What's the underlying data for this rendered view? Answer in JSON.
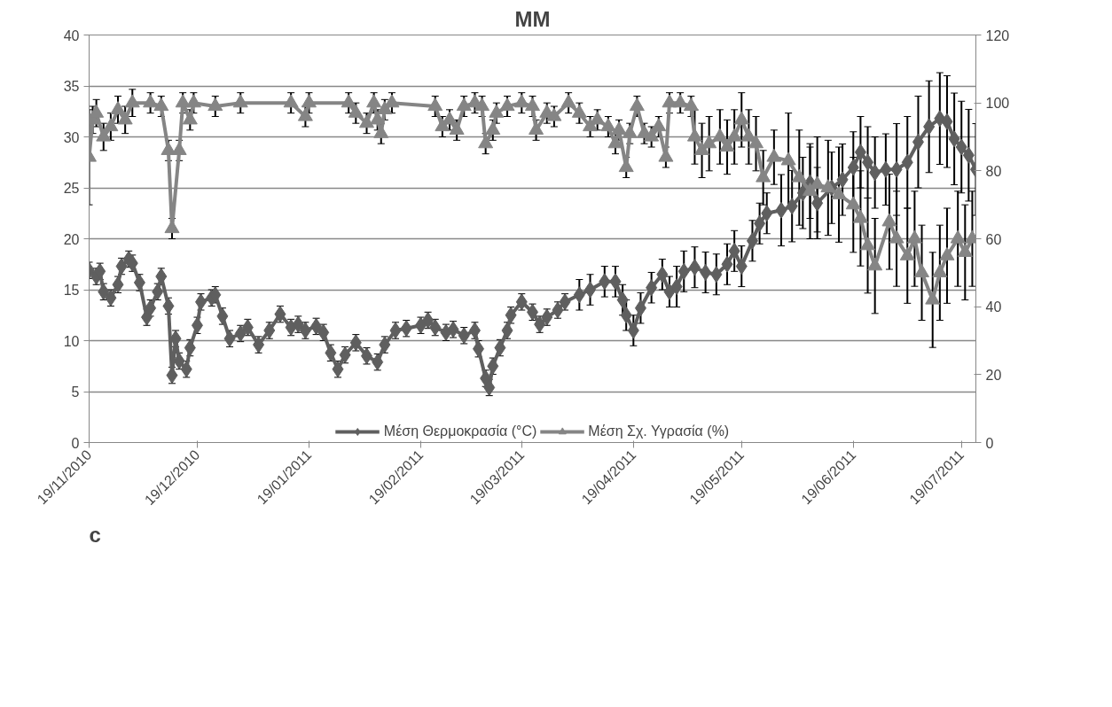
{
  "chart_data": {
    "type": "line",
    "title": "MM",
    "annotations": [
      "c"
    ],
    "xlim": [
      "2010-11-19",
      "2011-07-23"
    ],
    "xticks": [
      {
        "value": "2010-11-19",
        "label": "19/11/2010"
      },
      {
        "value": "2010-12-19",
        "label": "19/12/2010"
      },
      {
        "value": "2011-01-19",
        "label": "19/01/2011"
      },
      {
        "value": "2011-02-19",
        "label": "19/02/2011"
      },
      {
        "value": "2011-03-19",
        "label": "19/03/2011"
      },
      {
        "value": "2011-04-19",
        "label": "19/04/2011"
      },
      {
        "value": "2011-05-19",
        "label": "19/05/2011"
      },
      {
        "value": "2011-06-19",
        "label": "19/06/2011"
      },
      {
        "value": "2011-07-19",
        "label": "19/07/2011"
      }
    ],
    "ylim": [
      0,
      40
    ],
    "yticks": [
      0,
      5,
      10,
      15,
      20,
      25,
      30,
      35,
      40
    ],
    "y2lim": [
      0,
      120
    ],
    "y2ticks": [
      0,
      20,
      40,
      60,
      80,
      100,
      120
    ],
    "grid": "y",
    "legend": "bottom",
    "line_style": "solid",
    "series": [
      {
        "name": "Μέση Θερμοκρασία (°C)",
        "color": "#5f5f5f",
        "marker": "diamond",
        "x": [
          "2010-11-19",
          "2010-11-21",
          "2010-11-22",
          "2010-11-23",
          "2010-11-25",
          "2010-11-27",
          "2010-11-28",
          "2010-11-30",
          "2010-12-01",
          "2010-12-03",
          "2010-12-05",
          "2010-12-06",
          "2010-12-08",
          "2010-12-09",
          "2010-12-11",
          "2010-12-12",
          "2010-12-13",
          "2010-12-14",
          "2010-12-16",
          "2010-12-17",
          "2010-12-19",
          "2010-12-20",
          "2010-12-23",
          "2010-12-24",
          "2010-12-26",
          "2010-12-28",
          "2010-12-31",
          "2011-01-02",
          "2011-01-05",
          "2011-01-08",
          "2011-01-11",
          "2011-01-14",
          "2011-01-16",
          "2011-01-18",
          "2011-01-21",
          "2011-01-23",
          "2011-01-25",
          "2011-01-27",
          "2011-01-29",
          "2011-02-01",
          "2011-02-04",
          "2011-02-07",
          "2011-02-09",
          "2011-02-12",
          "2011-02-15",
          "2011-02-19",
          "2011-02-21",
          "2011-02-23",
          "2011-02-26",
          "2011-02-28",
          "2011-03-03",
          "2011-03-06",
          "2011-03-07",
          "2011-03-09",
          "2011-03-10",
          "2011-03-11",
          "2011-03-13",
          "2011-03-15",
          "2011-03-16",
          "2011-03-19",
          "2011-03-22",
          "2011-03-24",
          "2011-03-26",
          "2011-03-29",
          "2011-03-31",
          "2011-04-04",
          "2011-04-07",
          "2011-04-11",
          "2011-04-14",
          "2011-04-16",
          "2011-04-17",
          "2011-04-19",
          "2011-04-21",
          "2011-04-24",
          "2011-04-27",
          "2011-04-29",
          "2011-05-01",
          "2011-05-03",
          "2011-05-06",
          "2011-05-09",
          "2011-05-12",
          "2011-05-15",
          "2011-05-17",
          "2011-05-19",
          "2011-05-22",
          "2011-05-24",
          "2011-05-26",
          "2011-05-30",
          "2011-06-02",
          "2011-06-05",
          "2011-06-07",
          "2011-06-09",
          "2011-06-13",
          "2011-06-16",
          "2011-06-19",
          "2011-06-21",
          "2011-06-23",
          "2011-06-25",
          "2011-06-28",
          "2011-07-01",
          "2011-07-04",
          "2011-07-07",
          "2011-07-10",
          "2011-07-13",
          "2011-07-15",
          "2011-07-17",
          "2011-07-19",
          "2011-07-21",
          "2011-07-23"
        ],
        "values": [
          16.9,
          16.3,
          16.8,
          14.8,
          14.2,
          15.5,
          17.3,
          18.0,
          17.6,
          15.7,
          12.3,
          13.2,
          14.8,
          16.3,
          13.4,
          6.6,
          10.2,
          8.0,
          7.2,
          9.3,
          11.5,
          13.8,
          14.2,
          14.5,
          12.4,
          10.2,
          10.7,
          11.3,
          9.6,
          11.0,
          12.6,
          11.3,
          11.6,
          11.0,
          11.4,
          10.8,
          8.8,
          7.2,
          8.6,
          9.8,
          8.5,
          7.9,
          9.6,
          11.0,
          11.2,
          11.5,
          12.0,
          11.3,
          10.8,
          11.1,
          10.5,
          11.0,
          9.2,
          6.3,
          5.4,
          7.5,
          9.3,
          11.0,
          12.5,
          13.8,
          12.8,
          11.6,
          12.3,
          13.0,
          13.8,
          14.5,
          15.0,
          15.8,
          15.8,
          14.0,
          12.5,
          11.0,
          13.2,
          15.2,
          16.5,
          14.8,
          15.3,
          16.8,
          17.2,
          16.7,
          16.5,
          17.5,
          18.8,
          17.3,
          19.8,
          21.5,
          22.5,
          22.8,
          23.2,
          24.5,
          25.5,
          23.5,
          25.0,
          25.8,
          27.0,
          28.5,
          27.5,
          26.5,
          26.8,
          26.8,
          27.5,
          29.5,
          31.0,
          31.8,
          31.5,
          29.8,
          29.0,
          28.2,
          26.8
        ],
        "errors": [
          0.8,
          0.8,
          0.8,
          0.8,
          0.8,
          0.8,
          0.8,
          0.8,
          0.8,
          0.8,
          0.8,
          0.8,
          0.8,
          0.8,
          0.8,
          0.8,
          0.8,
          0.8,
          0.8,
          0.8,
          0.8,
          0.8,
          0.8,
          0.8,
          0.8,
          0.8,
          0.8,
          0.8,
          0.8,
          0.8,
          0.8,
          0.8,
          0.8,
          0.8,
          0.8,
          0.8,
          0.8,
          0.8,
          0.8,
          0.8,
          0.8,
          0.8,
          0.8,
          0.8,
          0.8,
          0.8,
          0.8,
          0.8,
          0.8,
          0.8,
          0.8,
          0.8,
          0.8,
          0.8,
          0.8,
          0.8,
          0.8,
          0.8,
          0.8,
          0.8,
          0.8,
          0.8,
          0.8,
          0.8,
          0.8,
          1.5,
          1.5,
          1.5,
          1.5,
          1.5,
          1.5,
          1.5,
          1.5,
          1.5,
          1.5,
          1.5,
          2,
          2,
          2,
          2,
          2,
          2,
          2,
          2,
          2,
          2,
          2,
          3.5,
          3.5,
          3.5,
          3.5,
          3.5,
          3.5,
          3.5,
          3.5,
          3.5,
          3.5,
          3.5,
          3.5,
          4.5,
          4.5,
          4.5,
          4.5,
          4.5,
          4.5,
          4.5,
          4.5,
          4.5,
          4.5
        ]
      },
      {
        "name": "Μέση Σχ. Υγρασία (%)",
        "color": "#858585",
        "marker": "triangle",
        "axis": "y2",
        "x": [
          "2010-11-19",
          "2010-11-20",
          "2010-11-21",
          "2010-11-23",
          "2010-11-25",
          "2010-11-27",
          "2010-11-29",
          "2010-12-01",
          "2010-12-06",
          "2010-12-09",
          "2010-12-11",
          "2010-12-12",
          "2010-12-14",
          "2010-12-15",
          "2010-12-17",
          "2010-12-18",
          "2010-12-24",
          "2010-12-31",
          "2011-01-14",
          "2011-01-18",
          "2011-01-19",
          "2011-01-30",
          "2011-02-01",
          "2011-02-04",
          "2011-02-06",
          "2011-02-07",
          "2011-02-08",
          "2011-02-09",
          "2011-02-11",
          "2011-02-23",
          "2011-02-25",
          "2011-02-27",
          "2011-03-01",
          "2011-03-03",
          "2011-03-06",
          "2011-03-08",
          "2011-03-09",
          "2011-03-11",
          "2011-03-12",
          "2011-03-15",
          "2011-03-19",
          "2011-03-22",
          "2011-03-23",
          "2011-03-26",
          "2011-03-28",
          "2011-04-01",
          "2011-04-04",
          "2011-04-07",
          "2011-04-09",
          "2011-04-12",
          "2011-04-14",
          "2011-04-15",
          "2011-04-17",
          "2011-04-18",
          "2011-04-20",
          "2011-04-22",
          "2011-04-24",
          "2011-04-26",
          "2011-04-28",
          "2011-04-29",
          "2011-05-02",
          "2011-05-05",
          "2011-05-06",
          "2011-05-08",
          "2011-05-10",
          "2011-05-13",
          "2011-05-15",
          "2011-05-17",
          "2011-05-19",
          "2011-05-21",
          "2011-05-23",
          "2011-05-25",
          "2011-05-28",
          "2011-06-01",
          "2011-06-04",
          "2011-06-07",
          "2011-06-09",
          "2011-06-12",
          "2011-06-15",
          "2011-06-19",
          "2011-06-21",
          "2011-06-23",
          "2011-06-25",
          "2011-06-29",
          "2011-07-01",
          "2011-07-04",
          "2011-07-06",
          "2011-07-08",
          "2011-07-11",
          "2011-07-13",
          "2011-07-15",
          "2011-07-18",
          "2011-07-20",
          "2011-07-22"
        ],
        "values": [
          84,
          95,
          97,
          90,
          93,
          98,
          95,
          100,
          100,
          99,
          86,
          63,
          86,
          100,
          95,
          100,
          99,
          100,
          100,
          96,
          100,
          100,
          97,
          94,
          100,
          95,
          91,
          98,
          100,
          99,
          93,
          95,
          92,
          99,
          100,
          99,
          88,
          92,
          97,
          99,
          100,
          99,
          92,
          97,
          96,
          100,
          97,
          93,
          95,
          93,
          88,
          92,
          81,
          91,
          99,
          91,
          90,
          93,
          84,
          100,
          100,
          99,
          90,
          86,
          88,
          90,
          87,
          90,
          95,
          90,
          88,
          78,
          84,
          83,
          78,
          74,
          76,
          75,
          73,
          70,
          66,
          58,
          52,
          65,
          60,
          55,
          60,
          50,
          42,
          50,
          55,
          60,
          56,
          60
        ],
        "errors": [
          14,
          4,
          4,
          4,
          4,
          4,
          4,
          4,
          3,
          3,
          3,
          3,
          3,
          3,
          3,
          3,
          3,
          3,
          3,
          3,
          3,
          3,
          3,
          3,
          3,
          3,
          3,
          3,
          3,
          3,
          3,
          3,
          3,
          3,
          3,
          3,
          3,
          3,
          3,
          3,
          3,
          3,
          3,
          3,
          3,
          3,
          3,
          3,
          3,
          3,
          3,
          3,
          3,
          3,
          3,
          3,
          3,
          3,
          3,
          3,
          3,
          3,
          8,
          8,
          8,
          8,
          8,
          8,
          8,
          8,
          8,
          8,
          8,
          14,
          14,
          14,
          14,
          14,
          14,
          14,
          14,
          14,
          14,
          14,
          14,
          14,
          14,
          14,
          14,
          14,
          14,
          14,
          14,
          14
        ]
      }
    ]
  }
}
